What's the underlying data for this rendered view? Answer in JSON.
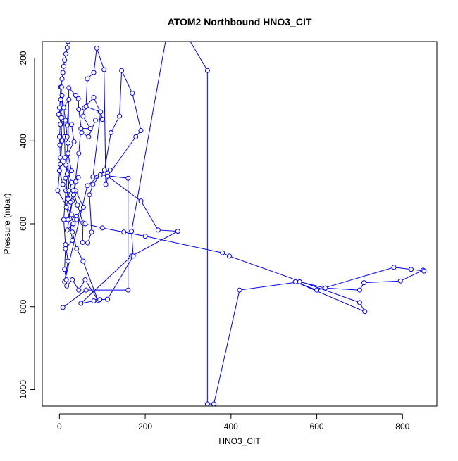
{
  "chart_data": {
    "type": "line",
    "title": "ATOM2 Northbound HNO3_CIT",
    "xlabel": "HNO3_CIT",
    "ylabel": "Pressure (mbar)",
    "xlim": [
      -40,
      880
    ],
    "ylim": [
      1040,
      160
    ],
    "y_reversed": true,
    "xticks": [
      "0",
      "200",
      "400",
      "600",
      "800"
    ],
    "yticks": [
      "200",
      "400",
      "600",
      "800",
      "1000"
    ],
    "grid": false,
    "legend": "none",
    "series_color": "#0000ff",
    "series": [
      {
        "points": [
          [
            8,
            802
          ],
          [
            62,
            760
          ],
          [
            160,
            760
          ],
          [
            160,
            490
          ],
          [
            95,
            482
          ],
          [
            65,
            508
          ],
          [
            12,
            740
          ],
          [
            20,
            690
          ],
          [
            14,
            650
          ],
          [
            10,
            590
          ],
          [
            15,
            520
          ],
          [
            18,
            480
          ],
          [
            13,
            440
          ],
          [
            12,
            390
          ],
          [
            10,
            350
          ],
          [
            8,
            320
          ],
          [
            3,
            270
          ],
          [
            0,
            335
          ],
          [
            22,
            300
          ],
          [
            18,
            362
          ],
          [
            28,
            360
          ],
          [
            34,
            402
          ],
          [
            20,
            430
          ],
          [
            28,
            472
          ],
          [
            14,
            490
          ],
          [
            20,
            538
          ],
          [
            16,
            560
          ],
          [
            24,
            588
          ],
          [
            30,
            640
          ],
          [
            14,
            660
          ],
          [
            12,
            710
          ],
          [
            16,
            735
          ],
          [
            17,
            750
          ],
          [
            30,
            735
          ],
          [
            45,
            760
          ],
          [
            60,
            735
          ],
          [
            90,
            785
          ],
          [
            55,
            690
          ],
          [
            40,
            660
          ],
          [
            30,
            620
          ],
          [
            35,
            590
          ],
          [
            20,
            590
          ],
          [
            30,
            545
          ],
          [
            38,
            520
          ],
          [
            56,
            560
          ],
          [
            40,
            582
          ],
          [
            32,
            600
          ],
          [
            18,
            615
          ],
          [
            33,
            530
          ],
          [
            45,
            430
          ],
          [
            50,
            370
          ],
          [
            72,
            370
          ],
          [
            55,
            340
          ],
          [
            58,
            320
          ],
          [
            80,
            295
          ],
          [
            95,
            330
          ],
          [
            62,
            317
          ],
          [
            65,
            250
          ],
          [
            80,
            235
          ],
          [
            87,
            176
          ],
          [
            104,
            228
          ],
          [
            108,
            505
          ],
          [
            118,
            470
          ],
          [
            78,
            487
          ],
          [
            96,
            330
          ],
          [
            100,
            348
          ],
          [
            84,
            350
          ],
          [
            68,
            390
          ],
          [
            52,
            380
          ],
          [
            45,
            324
          ],
          [
            44,
            298
          ],
          [
            38,
            290
          ],
          [
            22,
            272
          ],
          [
            20,
            405
          ],
          [
            15,
            458
          ],
          [
            28,
            500
          ],
          [
            20,
            540
          ],
          [
            26,
            548
          ],
          [
            38,
            498
          ],
          [
            44,
            488
          ],
          [
            32,
            520
          ],
          [
            42,
            555
          ],
          [
            55,
            598
          ],
          [
            54,
            645
          ],
          [
            66,
            646
          ],
          [
            75,
            620
          ],
          [
            70,
            530
          ],
          [
            78,
            505
          ],
          [
            105,
            470
          ],
          [
            120,
            380
          ],
          [
            140,
            340
          ],
          [
            145,
            230
          ],
          [
            170,
            285
          ],
          [
            190,
            375
          ],
          [
            178,
            390
          ],
          [
            112,
            485
          ],
          [
            190,
            545
          ],
          [
            230,
            615
          ],
          [
            276,
            618
          ],
          [
            168,
            678
          ],
          [
            50,
            792
          ],
          [
            80,
            786
          ],
          [
            94,
            783
          ],
          [
            112,
            782
          ],
          [
            172,
            678
          ],
          [
            168,
            618
          ],
          [
            255,
            115
          ],
          [
            268,
            95
          ],
          [
            345,
            230
          ],
          [
            345,
            1035
          ],
          [
            360,
            1035
          ],
          [
            420,
            760
          ],
          [
            560,
            740
          ],
          [
            620,
            755
          ],
          [
            700,
            760
          ],
          [
            710,
            742
          ],
          [
            795,
            738
          ],
          [
            848,
            712
          ],
          [
            850,
            714
          ],
          [
            820,
            710
          ],
          [
            780,
            705
          ],
          [
            600,
            760
          ],
          [
            550,
            740
          ],
          [
            712,
            812
          ],
          [
            700,
            790
          ],
          [
            396,
            678
          ],
          [
            380,
            670
          ],
          [
            200,
            630
          ],
          [
            150,
            620
          ],
          [
            100,
            610
          ],
          [
            60,
            600
          ],
          [
            40,
            590
          ],
          [
            28,
            578
          ],
          [
            -4,
            520
          ],
          [
            2,
            456
          ],
          [
            6,
            400
          ],
          [
            4,
            359
          ],
          [
            -2,
            336
          ],
          [
            3,
            320
          ],
          [
            6,
            290
          ],
          [
            10,
            320
          ],
          [
            14,
            350
          ],
          [
            18,
            390
          ],
          [
            22,
            520
          ],
          [
            8,
            505
          ],
          [
            0,
            472
          ],
          [
            2,
            440
          ],
          [
            1,
            410
          ],
          [
            0,
            390
          ],
          [
            2,
            360
          ],
          [
            4,
            344
          ],
          [
            0,
            320
          ],
          [
            3,
            300
          ],
          [
            5,
            270
          ],
          [
            6,
            250
          ],
          [
            8,
            235
          ],
          [
            10,
            220
          ],
          [
            12,
            205
          ],
          [
            15,
            190
          ],
          [
            18,
            175
          ],
          [
            20,
            160
          ]
        ]
      }
    ]
  }
}
